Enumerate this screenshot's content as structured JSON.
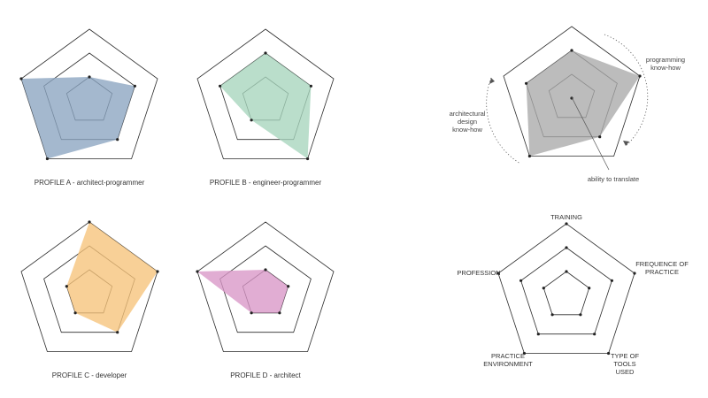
{
  "diagram": {
    "rings": [
      1,
      2,
      3
    ],
    "axis_order": [
      "training",
      "frequence_of_practice",
      "type_of_tools_used",
      "practice_environment",
      "profession"
    ],
    "profiles": [
      {
        "key": "a",
        "label": "PROFILE A - architect-programmer",
        "color": "#8aa4c0",
        "levels": [
          1,
          2,
          2,
          3,
          3
        ]
      },
      {
        "key": "b",
        "label": "PROFILE B - engineer-programmer",
        "color": "#a6d5bd",
        "levels": [
          2,
          2,
          3,
          1,
          2
        ]
      },
      {
        "key": "c",
        "label": "PROFILE C - developer",
        "color": "#f6c37a",
        "levels": [
          3,
          3,
          2,
          1,
          1
        ]
      },
      {
        "key": "d",
        "label": "PROFILE D - architect",
        "color": "#d996c6",
        "levels": [
          1,
          1,
          1,
          1,
          3
        ]
      }
    ],
    "summary": {
      "color": "#a9a9a9",
      "levels": [
        2,
        3,
        2,
        3,
        2
      ],
      "annotations": {
        "programming": "programming\nknow-how",
        "design": "architectural\ndesign\nknow-how",
        "translate": "ability to translate"
      }
    },
    "legend": {
      "axes": {
        "training": "TRAINING",
        "frequence": "FREQUENCE OF\nPRACTICE",
        "tools": "TYPE OF\nTOOLS\nUSED",
        "environment": "PRACTICE\nENVIRONMENT",
        "profession": "PROFESSION"
      }
    }
  }
}
